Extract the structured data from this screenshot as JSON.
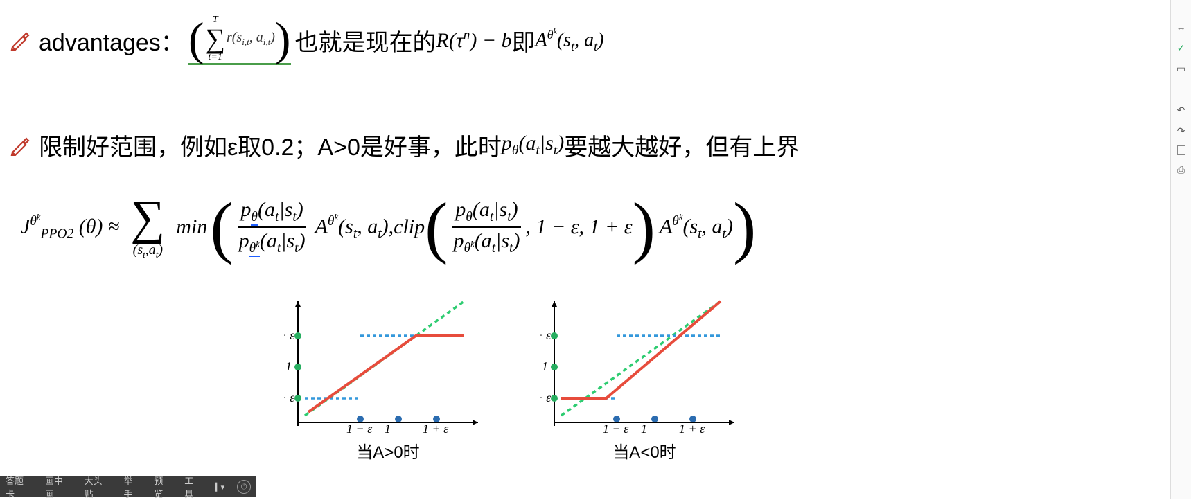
{
  "line1": {
    "label": "advantages：",
    "sum_upper": "T",
    "sum_lower": "t=1",
    "sum_body": "r(s",
    "sum_body_sub": "i,t",
    "sum_body2": ", a",
    "sum_body2_sub": "i,t",
    "sum_body3": ")",
    "mid_cn": "  也就是现在的  ",
    "R": "R(τ",
    "R_sup": "n",
    "R_tail": ") − b",
    "ji": "  即  ",
    "A": "A",
    "A_sup": "θ",
    "A_supsup": "k",
    "A_args": "(s",
    "A_args_sub": "t",
    "A_args2": ", a",
    "A_args2_sub": "t",
    "A_args3": ")"
  },
  "line2": {
    "text_a": "限制好范围，例如ε取0.2；A>0是好事，此时 ",
    "p": "p",
    "p_sub": "θ",
    "p_args": "(a",
    "p_args_sub": "t",
    "p_mid": "|s",
    "p_mid_sub": "t",
    "p_tail": ")",
    "text_b": "要越大越好，但有上界"
  },
  "formula": {
    "J": "J",
    "J_sub": "PPO2",
    "J_sup": "θ",
    "J_supsup": "k",
    "J_arg": "(θ)  ≈",
    "sum_sub": "(s_t,a_t)",
    "min": "min",
    "p": "p",
    "theta": "θ",
    "thetak": "θ",
    "k": "k",
    "a": "a",
    "s": "s",
    "t": "t",
    "A": "A",
    "comma": ",   ",
    "clip": "clip",
    "one_minus": ", 1 − ε, 1 + ε"
  },
  "charts": {
    "y_ticks": [
      "1 + ε",
      "1",
      "1 − ε"
    ],
    "x_ticks": [
      "1 − ε",
      "1",
      "1 + ε"
    ],
    "left_caption": "当A>0时",
    "right_caption": "当A<0时",
    "colors": {
      "axis": "#000000",
      "red_line": "#e74c3c",
      "green_dash": "#2ecc71",
      "blue_dash": "#3498db",
      "dot_green": "#27ae60",
      "dot_blue": "#2b6cb0"
    },
    "left": {
      "clip_line": [
        [
          30,
          150
        ],
        [
          110,
          150
        ],
        [
          200,
          60
        ],
        [
          200,
          60
        ],
        [
          260,
          60
        ]
      ],
      "red_line": [
        [
          35,
          170
        ],
        [
          190,
          60
        ],
        [
          260,
          60
        ]
      ],
      "green_dash": [
        [
          30,
          175
        ],
        [
          260,
          10
        ]
      ],
      "blue_dash_top": [
        [
          110,
          60
        ],
        [
          260,
          60
        ]
      ],
      "blue_dash_bot": [
        [
          30,
          150
        ],
        [
          110,
          150
        ]
      ],
      "y_dots": [
        [
          20,
          60
        ],
        [
          20,
          105
        ],
        [
          20,
          150
        ]
      ],
      "x_dots": [
        [
          110,
          180
        ],
        [
          165,
          180
        ],
        [
          220,
          180
        ]
      ]
    },
    "right": {
      "red_line": [
        [
          30,
          150
        ],
        [
          95,
          150
        ],
        [
          260,
          10
        ]
      ],
      "green_dash": [
        [
          30,
          175
        ],
        [
          260,
          10
        ]
      ],
      "blue_dash_top": [
        [
          110,
          60
        ],
        [
          260,
          60
        ]
      ],
      "blue_dash_bot": [
        [
          30,
          150
        ],
        [
          110,
          150
        ]
      ],
      "y_dots": [
        [
          20,
          60
        ],
        [
          20,
          105
        ],
        [
          20,
          150
        ]
      ],
      "x_dots": [
        [
          110,
          180
        ],
        [
          165,
          180
        ],
        [
          220,
          180
        ]
      ]
    }
  },
  "bottombar": {
    "items": [
      "答题卡",
      "画中画",
      "大头贴",
      "举手",
      "预览",
      "工具"
    ],
    "mic": "▍▾"
  },
  "sidetoolbar": {
    "items": [
      "↔",
      "✓",
      "▭",
      "＋",
      "↶",
      "↷",
      "▭",
      "⊕"
    ]
  }
}
